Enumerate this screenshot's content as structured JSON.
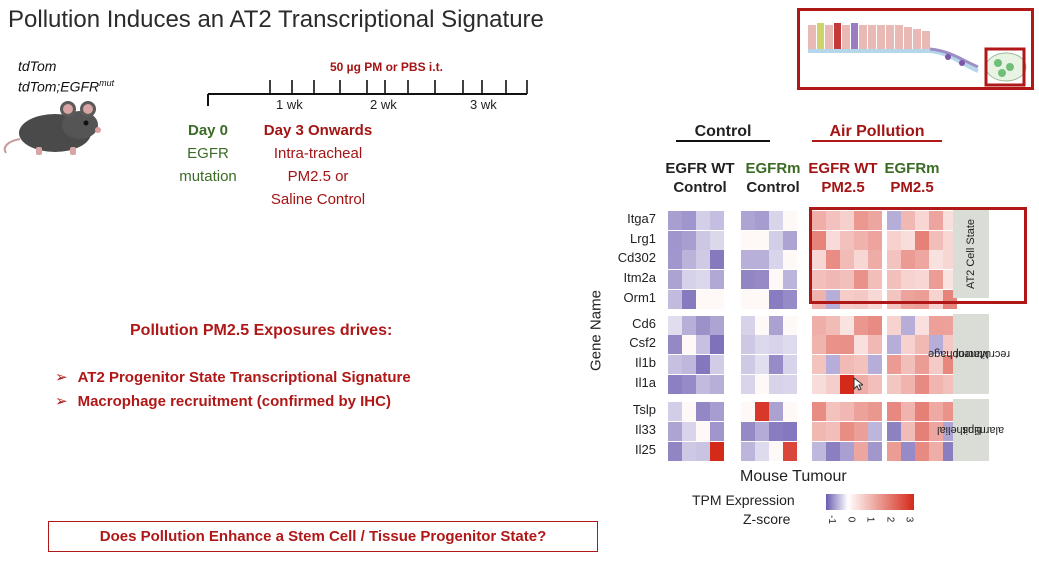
{
  "slide": {
    "title": "Pollution Induces an AT2 Transcriptional Signature",
    "mouse_models": {
      "line1": "tdTom",
      "line2_base": "tdTom;EGFR",
      "line2_sup": "mut"
    },
    "timeline": {
      "treatment_label": "50 µg PM or PBS i.t.",
      "weeks": [
        "1 wk",
        "2 wk",
        "3 wk"
      ],
      "day0_title": "Day 0",
      "day0_desc": [
        "EGFR",
        "mutation"
      ],
      "day3_title": "Day 3 Onwards",
      "day3_desc": [
        "Intra-tracheal",
        "PM2.5 or",
        "Saline Control"
      ]
    },
    "drives": {
      "heading": "Pollution PM2.5 Exposures drives:",
      "bullet_marker": "➢",
      "items": [
        "AT2 Progenitor State Transcriptional Signature",
        "Macrophage recruitment (confirmed by IHC)"
      ]
    },
    "question": "Does Pollution Enhance a Stem Cell / Tissue Progenitor State?"
  },
  "heatmap": {
    "group_headers": {
      "control": "Control",
      "air_pollution": "Air Pollution"
    },
    "columns": [
      {
        "line1": "EGFR  WT",
        "line2": "Control",
        "tone": "dark"
      },
      {
        "line1": "EGFRm",
        "line2": "Control",
        "tone": "green"
      },
      {
        "line1": "EGFR WT",
        "line2": "PM2.5",
        "tone": "red"
      },
      {
        "line1": "EGFRm",
        "line2": "PM2.5",
        "tone": "green"
      }
    ],
    "y_axis_title": "Gene Name",
    "x_axis_title": "Mouse Tumour",
    "blocks": [
      {
        "label": "AT2 Cell State",
        "genes": [
          "Itga7",
          "Lrg1",
          "Cd302",
          "Itm2a",
          "Orm1"
        ]
      },
      {
        "label_lines": [
          "Macrophage",
          "recruitment"
        ],
        "genes": [
          "Cd6",
          "Csf2",
          "Il1b",
          "Il1a"
        ]
      },
      {
        "label_lines": [
          "Epithelial",
          "alarmins"
        ],
        "genes": [
          "Tslp",
          "Il33",
          "Il25"
        ]
      }
    ],
    "legend": {
      "title_line1": "TPM Expression",
      "title_line2": "Z-score",
      "ticks": [
        "-1",
        "0",
        "1",
        "2",
        "3"
      ]
    },
    "colors": {
      "low": "#6c5bb0",
      "mid": "#ffffff",
      "high": "#d42a1a"
    }
  }
}
